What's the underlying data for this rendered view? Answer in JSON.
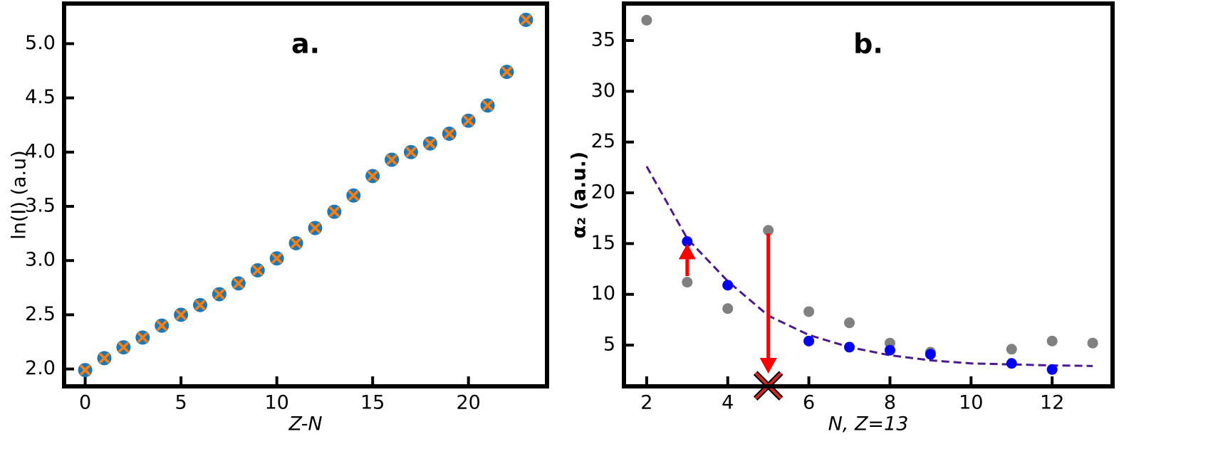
{
  "chart_data": [
    {
      "type": "scatter",
      "title": "a.",
      "xlabel": "Z-N",
      "ylabel": "ln(I) (a.u)",
      "xlim": [
        -1.1,
        24.1
      ],
      "ylim": [
        1.84,
        5.37
      ],
      "xticks": [
        0,
        5,
        10,
        15,
        20
      ],
      "yticks": [
        {
          "value": 2,
          "label": "2.0"
        },
        2.5,
        {
          "value": 3,
          "label": "3.0"
        },
        3.5,
        {
          "value": 4,
          "label": "4.0"
        },
        4.5,
        {
          "value": 5,
          "label": "5.0"
        }
      ],
      "series": [
        {
          "marker": "circle",
          "color": "#1f77b4",
          "x": [
            0,
            1,
            2,
            3,
            4,
            5,
            6,
            7,
            8,
            9,
            10,
            11,
            12,
            13,
            14,
            15,
            16,
            17,
            18,
            19,
            20,
            21,
            22,
            23
          ],
          "values": [
            1.99,
            2.1,
            2.2,
            2.29,
            2.4,
            2.5,
            2.59,
            2.69,
            2.79,
            2.91,
            3.02,
            3.16,
            3.3,
            3.45,
            3.6,
            3.78,
            3.93,
            4.0,
            4.08,
            4.17,
            4.29,
            4.43,
            4.74,
            5.22
          ]
        },
        {
          "marker": "x",
          "color": "#ff7f0e",
          "x": [
            0,
            1,
            2,
            3,
            4,
            5,
            6,
            7,
            8,
            9,
            10,
            11,
            12,
            13,
            14,
            15,
            16,
            17,
            18,
            19,
            20,
            21,
            22,
            23
          ],
          "values": [
            1.99,
            2.1,
            2.2,
            2.29,
            2.4,
            2.5,
            2.59,
            2.69,
            2.79,
            2.91,
            3.02,
            3.16,
            3.3,
            3.45,
            3.6,
            3.78,
            3.93,
            4.0,
            4.08,
            4.17,
            4.29,
            4.43,
            4.74,
            5.22
          ]
        }
      ]
    },
    {
      "type": "scatter",
      "title": "b.",
      "xlabel": "N, Z=13",
      "ylabel": "α₂ (a.u.)",
      "xlim": [
        1.44,
        13.49
      ],
      "ylim": [
        0.94,
        38.64
      ],
      "xticks": [
        2,
        4,
        6,
        8,
        10,
        12
      ],
      "yticks": [
        5,
        10,
        15,
        20,
        25,
        30,
        35
      ],
      "series": [
        {
          "marker": "dashed-line",
          "color": "#4b1a8c",
          "x": [
            2,
            3,
            4,
            5,
            6,
            7,
            8,
            9,
            10,
            11,
            12,
            13
          ],
          "values": [
            22.6,
            15.5,
            11.3,
            7.9,
            6.0,
            4.8,
            4.0,
            3.5,
            3.2,
            3.1,
            3.0,
            2.95
          ]
        },
        {
          "marker": "circle",
          "color": "#808080",
          "x": [
            2,
            3,
            4,
            5,
            6,
            7,
            8,
            9,
            11,
            12,
            13
          ],
          "values": [
            37.0,
            11.2,
            8.6,
            16.3,
            8.3,
            7.2,
            5.2,
            4.3,
            4.6,
            5.4,
            5.2
          ]
        },
        {
          "marker": "circle",
          "color": "#0000ee",
          "x": [
            3,
            4,
            6,
            7,
            8,
            9,
            11,
            12
          ],
          "values": [
            15.2,
            10.9,
            5.4,
            4.8,
            4.5,
            4.1,
            3.2,
            2.6
          ]
        }
      ],
      "arrows": [
        {
          "x": 3,
          "from": 11.8,
          "to": 15.0
        },
        {
          "x": 5,
          "from": 16.0,
          "to": 2.2
        }
      ],
      "arrow_color": "#ff0000",
      "cross": {
        "x": 5,
        "y": 1.0,
        "color": "#d62728"
      }
    }
  ]
}
